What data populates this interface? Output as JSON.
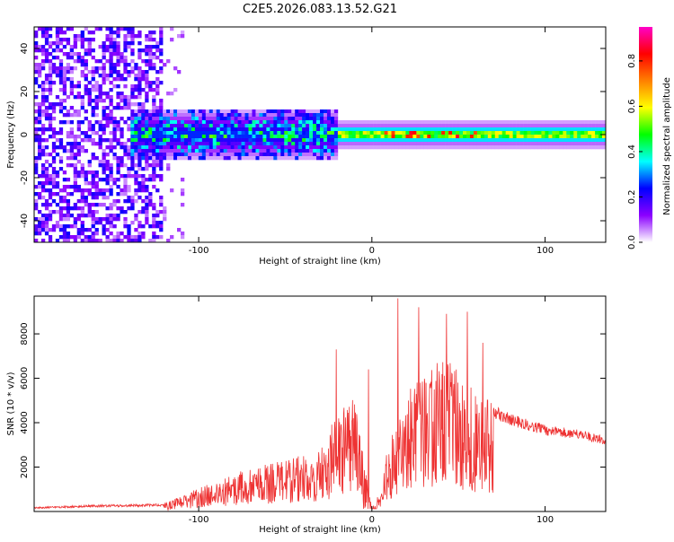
{
  "figure_title": "C2E5.2026.083.13.52.G21",
  "chart_data": [
    {
      "type": "heatmap",
      "title": "C2E5.2026.083.13.52.G21",
      "xlabel": "Height of straight line (km)",
      "ylabel": "Frequency (Hz)",
      "xlim": [
        -195,
        135
      ],
      "ylim": [
        -50,
        50
      ],
      "xticks": [
        -100,
        0,
        100
      ],
      "xtick_labels": [
        "-100",
        "0",
        "100"
      ],
      "yticks": [
        -40,
        -20,
        0,
        20,
        40
      ],
      "ytick_labels": [
        "-40",
        "-20",
        "0",
        "20",
        "40"
      ],
      "colorbar": {
        "label": "Normalized spectral amplitude",
        "range": [
          0,
          0.95
        ],
        "ticks": [
          0.0,
          0.2,
          0.4,
          0.6,
          0.8
        ],
        "tick_labels": [
          "0.0",
          "0.2",
          "0.4",
          "0.6",
          "0.8"
        ],
        "colors": [
          "#ffffff",
          "#8b00ff",
          "#0000ff",
          "#00ffff",
          "#00ff00",
          "#ffff00",
          "#ff8000",
          "#ff0000",
          "#ff00c8"
        ]
      },
      "features": {
        "scattered_noise_x_range": [
          -195,
          -120
        ],
        "band_center_hz": 0,
        "band_half_width_hz_left": 8,
        "band_half_width_hz_right": 4,
        "band_start_km": -140,
        "band_dense_from_km": -20,
        "band_end_km": 135
      }
    },
    {
      "type": "line",
      "xlabel": "Height of straight line (km)",
      "ylabel": "SNR (10 * v/v)",
      "xlim": [
        -195,
        135
      ],
      "ylim": [
        0,
        9700
      ],
      "xticks": [
        -100,
        0,
        100
      ],
      "xtick_labels": [
        "-100",
        "0",
        "100"
      ],
      "yticks": [
        2000,
        4000,
        6000,
        8000
      ],
      "ytick_labels": [
        "2000",
        "4000",
        "6000",
        "8000"
      ],
      "color": "#ee3333",
      "envelope_x": [
        -195,
        -160,
        -120,
        -110,
        -90,
        -70,
        -50,
        -30,
        -20,
        -10,
        -5,
        0,
        5,
        10,
        20,
        30,
        40,
        50,
        60,
        70,
        80,
        100,
        120,
        135
      ],
      "envelope_y": [
        200,
        300,
        350,
        700,
        1400,
        2000,
        2300,
        2800,
        4500,
        5200,
        2500,
        200,
        1000,
        3500,
        5500,
        6500,
        6800,
        6600,
        5500,
        4800,
        4400,
        3900,
        3700,
        3400
      ],
      "peaks": [
        {
          "x": -20.5,
          "y": 7300
        },
        {
          "x": -2,
          "y": 6400
        },
        {
          "x": 15,
          "y": 9600
        },
        {
          "x": 27,
          "y": 9200
        },
        {
          "x": 43,
          "y": 8900
        },
        {
          "x": 55,
          "y": 9000
        },
        {
          "x": 64,
          "y": 7600
        }
      ]
    }
  ]
}
